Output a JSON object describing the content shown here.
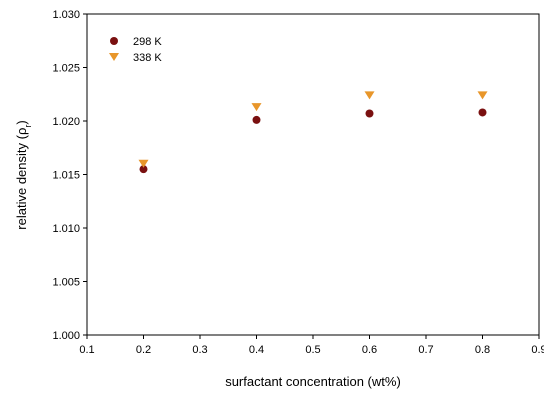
{
  "chart_data": {
    "type": "scatter",
    "xlabel": "surfactant concentration (wt%)",
    "ylabel_main": "relative density (ρ",
    "ylabel_sub": "r",
    "ylabel_close": ")",
    "xlim": [
      0.1,
      0.9
    ],
    "ylim": [
      1.0,
      1.03
    ],
    "x_ticks": [
      0.1,
      0.2,
      0.3,
      0.4,
      0.5,
      0.6,
      0.7,
      0.8,
      0.9
    ],
    "y_ticks": [
      1.0,
      1.005,
      1.01,
      1.015,
      1.02,
      1.025,
      1.03
    ],
    "x_tick_labels": [
      "0.1",
      "0.2",
      "0.3",
      "0.4",
      "0.5",
      "0.6",
      "0.7",
      "0.8",
      "0.9"
    ],
    "y_tick_labels": [
      "1.000",
      "1.005",
      "1.010",
      "1.015",
      "1.020",
      "1.025",
      "1.030"
    ],
    "grid": false,
    "legend_position": "top-left",
    "series": [
      {
        "name": "298 K",
        "marker": "circle",
        "color": "#7a1010",
        "x": [
          0.2,
          0.4,
          0.6,
          0.8
        ],
        "y": [
          1.0155,
          1.0201,
          1.0207,
          1.0208
        ]
      },
      {
        "name": "338 K",
        "marker": "triangle-down",
        "color": "#e8962a",
        "x": [
          0.2,
          0.4,
          0.6,
          0.8
        ],
        "y": [
          1.016,
          1.0213,
          1.0224,
          1.0224
        ]
      }
    ]
  }
}
